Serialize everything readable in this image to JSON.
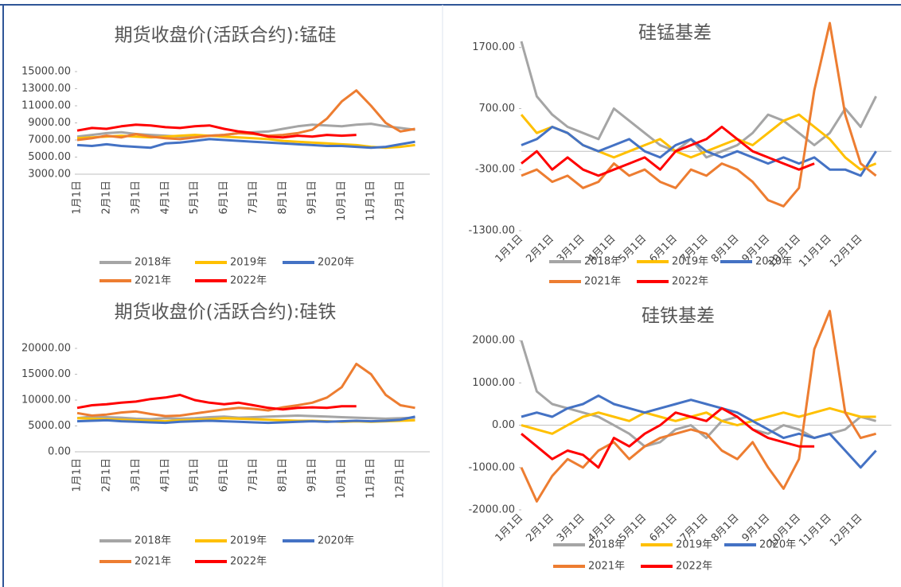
{
  "chart_data": [
    {
      "type": "line",
      "title": "期货收盘价(活跃合约):锰硅",
      "legend": "bottom",
      "categories": [
        "1月1日",
        null,
        "2月1日",
        null,
        "3月1日",
        null,
        "4月1日",
        null,
        "5月1日",
        null,
        "6月1日",
        null,
        "7月1日",
        null,
        "8月1日",
        null,
        "9月1日",
        null,
        "10月1日",
        null,
        "11月1日",
        null,
        "12月1日",
        null
      ],
      "ylim": [
        3000,
        15000
      ],
      "yticks": [
        {
          "value": 3000,
          "label": "3000.00"
        },
        {
          "value": 5000,
          "label": "5000.00"
        },
        {
          "value": 7000,
          "label": "7000.00"
        },
        {
          "value": 9000,
          "label": "9000.00"
        },
        {
          "value": 11000,
          "label": "11000.00"
        },
        {
          "value": 13000,
          "label": "13000.00"
        },
        {
          "value": 15000,
          "label": "15000.00"
        }
      ],
      "series": [
        {
          "name": "2018年",
          "color": "#a5a5a5",
          "values": [
            7400,
            7600,
            7800,
            7900,
            7700,
            7600,
            7500,
            7400,
            7300,
            7500,
            7600,
            7800,
            7900,
            8000,
            8300,
            8600,
            8800,
            8700,
            8600,
            8800,
            8900,
            8600,
            8400,
            8200
          ]
        },
        {
          "name": "2019年",
          "color": "#ffc000",
          "values": [
            7200,
            7300,
            7400,
            7500,
            7400,
            7300,
            7400,
            7500,
            7600,
            7500,
            7400,
            7300,
            7200,
            7100,
            6900,
            6800,
            6700,
            6600,
            6500,
            6400,
            6200,
            6100,
            6200,
            6400
          ]
        },
        {
          "name": "2020年",
          "color": "#4472c4",
          "values": [
            6400,
            6300,
            6500,
            6300,
            6200,
            6100,
            6600,
            6700,
            6900,
            7100,
            7000,
            6900,
            6800,
            6700,
            6600,
            6500,
            6400,
            6300,
            6300,
            6200,
            6100,
            6200,
            6500,
            6800
          ]
        },
        {
          "name": "2021年",
          "color": "#ed7d31",
          "values": [
            7000,
            7200,
            7500,
            7300,
            7700,
            7400,
            7200,
            7100,
            7300,
            7500,
            7600,
            7800,
            7700,
            7500,
            7600,
            7800,
            8200,
            9500,
            11500,
            12800,
            11000,
            9000,
            8000,
            8300
          ]
        },
        {
          "name": "2022年",
          "color": "#ff0000",
          "values": [
            8100,
            8400,
            8300,
            8600,
            8800,
            8700,
            8500,
            8400,
            8600,
            8700,
            8300,
            8000,
            7800,
            7400,
            7300,
            7500,
            7400,
            7600,
            7500,
            7600,
            null,
            null,
            null,
            null
          ]
        }
      ]
    },
    {
      "type": "line",
      "title": "期货收盘价(活跃合约):硅铁",
      "legend": "bottom",
      "categories": [
        "1月1日",
        null,
        "2月1日",
        null,
        "3月1日",
        null,
        "4月1日",
        null,
        "5月1日",
        null,
        "6月1日",
        null,
        "7月1日",
        null,
        "8月1日",
        null,
        "9月1日",
        null,
        "10月1日",
        null,
        "11月1日",
        null,
        "12月1日",
        null
      ],
      "ylim": [
        0,
        20000
      ],
      "yticks": [
        {
          "value": 0,
          "label": "0.00"
        },
        {
          "value": 5000,
          "label": "5000.00"
        },
        {
          "value": 10000,
          "label": "10000.00"
        },
        {
          "value": 15000,
          "label": "15000.00"
        },
        {
          "value": 20000,
          "label": "20000.00"
        }
      ],
      "series": [
        {
          "name": "2018年",
          "color": "#a5a5a5",
          "values": [
            6500,
            6800,
            6700,
            6600,
            6400,
            6300,
            6500,
            6400,
            6500,
            6700,
            6800,
            6600,
            6700,
            6800,
            6900,
            7000,
            6900,
            6800,
            6700,
            6600,
            6500,
            6400,
            6500,
            6600
          ]
        },
        {
          "name": "2019年",
          "color": "#ffc000",
          "values": [
            6500,
            6400,
            6300,
            6200,
            6100,
            6000,
            5900,
            6100,
            6200,
            6300,
            6500,
            6400,
            6300,
            6200,
            6100,
            6000,
            6000,
            5900,
            5800,
            5900,
            5800,
            5900,
            6000,
            6100
          ]
        },
        {
          "name": "2020年",
          "color": "#4472c4",
          "values": [
            5900,
            6000,
            6100,
            5900,
            5800,
            5700,
            5600,
            5800,
            5900,
            6000,
            5900,
            5800,
            5700,
            5600,
            5700,
            5800,
            5900,
            5800,
            5900,
            6000,
            5900,
            6000,
            6200,
            6800
          ]
        },
        {
          "name": "2021年",
          "color": "#ed7d31",
          "values": [
            7500,
            7000,
            7200,
            7600,
            7800,
            7300,
            6900,
            7000,
            7400,
            7800,
            8200,
            8500,
            8300,
            8000,
            8600,
            9000,
            9500,
            10500,
            12500,
            17000,
            15000,
            11000,
            9000,
            8500
          ]
        },
        {
          "name": "2022年",
          "color": "#ff0000",
          "values": [
            8500,
            9000,
            9200,
            9500,
            9700,
            10200,
            10500,
            11000,
            10000,
            9500,
            9200,
            9500,
            9000,
            8500,
            8200,
            8500,
            8600,
            8500,
            8800,
            8800,
            null,
            null,
            null,
            null
          ]
        }
      ]
    },
    {
      "type": "line",
      "title": "硅锰基差",
      "legend": "bottom",
      "categories": [
        "1月1日",
        null,
        "2月1日",
        null,
        "3月1日",
        null,
        "4月1日",
        null,
        "5月1日",
        null,
        "6月1日",
        null,
        "7月1日",
        null,
        "8月1日",
        null,
        "9月1日",
        null,
        "10月1日",
        null,
        "11月1日",
        null,
        "12月1日",
        null
      ],
      "ylim": [
        -1300,
        2100
      ],
      "yticks": [
        {
          "value": -1300,
          "label": "-1300.00"
        },
        {
          "value": -300,
          "label": "-300.00"
        },
        {
          "value": 700,
          "label": "700.00"
        },
        {
          "value": 1700,
          "label": "1700.00"
        }
      ],
      "series": [
        {
          "name": "2018年",
          "color": "#a5a5a5",
          "values": [
            1800,
            900,
            600,
            400,
            300,
            200,
            700,
            500,
            300,
            100,
            0,
            200,
            -100,
            0,
            100,
            300,
            600,
            500,
            300,
            100,
            300,
            700,
            400,
            900
          ]
        },
        {
          "name": "2019年",
          "color": "#ffc000",
          "values": [
            600,
            300,
            400,
            300,
            100,
            0,
            -100,
            0,
            100,
            200,
            0,
            -100,
            0,
            100,
            200,
            100,
            300,
            500,
            600,
            400,
            200,
            -100,
            -300,
            -200
          ]
        },
        {
          "name": "2020年",
          "color": "#4472c4",
          "values": [
            100,
            200,
            400,
            300,
            100,
            0,
            100,
            200,
            0,
            -100,
            100,
            200,
            0,
            -100,
            0,
            -100,
            -200,
            -100,
            -200,
            -100,
            -300,
            -300,
            -400,
            0
          ]
        },
        {
          "name": "2021年",
          "color": "#ed7d31",
          "values": [
            -400,
            -300,
            -500,
            -400,
            -600,
            -500,
            -200,
            -400,
            -300,
            -500,
            -600,
            -300,
            -400,
            -200,
            -300,
            -500,
            -800,
            -900,
            -600,
            1000,
            2100,
            600,
            -200,
            -400
          ]
        },
        {
          "name": "2022年",
          "color": "#ff0000",
          "values": [
            -200,
            0,
            -300,
            -100,
            -300,
            -400,
            -300,
            -200,
            -100,
            -300,
            0,
            100,
            200,
            400,
            200,
            0,
            -100,
            -200,
            -300,
            -200,
            null,
            null,
            null,
            null
          ]
        }
      ]
    },
    {
      "type": "line",
      "title": "硅铁基差",
      "legend": "bottom",
      "categories": [
        "1月1日",
        null,
        "2月1日",
        null,
        "3月1日",
        null,
        "4月1日",
        null,
        "5月1日",
        null,
        "6月1日",
        null,
        "7月1日",
        null,
        "8月1日",
        null,
        "9月1日",
        null,
        "10月1日",
        null,
        "11月1日",
        null,
        "12月1日",
        null
      ],
      "ylim": [
        -2000,
        2700
      ],
      "yticks": [
        {
          "value": -2000,
          "label": "-2000.00"
        },
        {
          "value": -1000,
          "label": "-1000.00"
        },
        {
          "value": 0,
          "label": "0.00"
        },
        {
          "value": 1000,
          "label": "1000.00"
        },
        {
          "value": 2000,
          "label": "2000.00"
        }
      ],
      "series": [
        {
          "name": "2018年",
          "color": "#a5a5a5",
          "values": [
            2000,
            800,
            500,
            400,
            300,
            200,
            0,
            -200,
            -500,
            -400,
            -100,
            0,
            -300,
            100,
            200,
            -100,
            -200,
            0,
            -100,
            -300,
            -200,
            -100,
            200,
            100
          ]
        },
        {
          "name": "2019年",
          "color": "#ffc000",
          "values": [
            0,
            -100,
            -200,
            0,
            200,
            300,
            200,
            100,
            300,
            200,
            100,
            200,
            300,
            100,
            0,
            100,
            200,
            300,
            200,
            300,
            400,
            300,
            200,
            200
          ]
        },
        {
          "name": "2020年",
          "color": "#4472c4",
          "values": [
            200,
            300,
            200,
            400,
            500,
            700,
            500,
            400,
            300,
            400,
            500,
            600,
            500,
            400,
            300,
            100,
            -100,
            -300,
            -200,
            -300,
            -200,
            -600,
            -1000,
            -600
          ]
        },
        {
          "name": "2021年",
          "color": "#ed7d31",
          "values": [
            -1000,
            -1800,
            -1200,
            -800,
            -1000,
            -600,
            -400,
            -800,
            -500,
            -300,
            -200,
            -100,
            -200,
            -600,
            -800,
            -400,
            -1000,
            -1500,
            -800,
            1800,
            2700,
            300,
            -300,
            -200
          ]
        },
        {
          "name": "2022年",
          "color": "#ff0000",
          "values": [
            -200,
            -500,
            -800,
            -600,
            -700,
            -1000,
            -300,
            -500,
            -200,
            0,
            300,
            200,
            100,
            400,
            200,
            -100,
            -300,
            -400,
            -500,
            -500,
            null,
            null,
            null,
            null
          ]
        }
      ]
    }
  ]
}
